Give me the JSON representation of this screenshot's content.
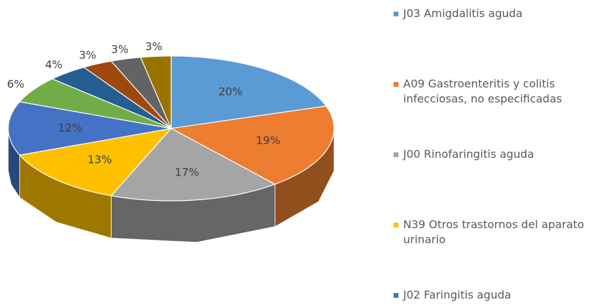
{
  "chart_data": {
    "type": "pie3d",
    "categories": [
      "J03 Amigdalitis aguda",
      "A09 Gastroenteritis y colitis infecciosas, no especificadas",
      "J00 Rinofaringitis aguda",
      "N39 Otros trastornos del aparato urinario",
      "J02 Faringitis aguda",
      null,
      null,
      null,
      null,
      null
    ],
    "values": [
      20,
      19,
      17,
      13,
      12,
      6,
      4,
      3,
      3,
      3
    ],
    "value_labels": [
      "20%",
      "19%",
      "17%",
      "13%",
      "12%",
      "6%",
      "4%",
      "3%",
      "3%",
      "3%"
    ],
    "colors": [
      "#5b9bd5",
      "#ed7d31",
      "#a5a5a5",
      "#ffc000",
      "#4472c4",
      "#70ad47",
      "#255e91",
      "#9e480e",
      "#636363",
      "#997300"
    ]
  }
}
